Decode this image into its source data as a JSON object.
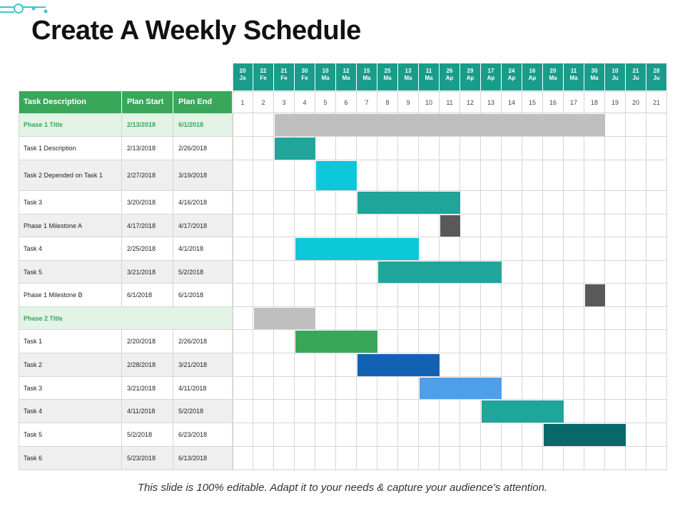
{
  "slide": {
    "title": "Create A Weekly Schedule",
    "footer": "This slide is 100% editable. Adapt it to your needs & capture your audience's attention.",
    "accent_color": "#1a9c8b",
    "header_green": "#3aa65a"
  },
  "chart_data": {
    "type": "table",
    "columns": [
      "Task Description",
      "Plan Start",
      "Plan End"
    ],
    "week_dates": [
      [
        "20",
        "Ja"
      ],
      [
        "22",
        "Fe"
      ],
      [
        "21",
        "Fe"
      ],
      [
        "30",
        "Fe"
      ],
      [
        "10",
        "Ma"
      ],
      [
        "12",
        "Ma"
      ],
      [
        "15",
        "Ma"
      ],
      [
        "25",
        "Ma"
      ],
      [
        "13",
        "Ma"
      ],
      [
        "11",
        "Ma"
      ],
      [
        "26",
        "Ap"
      ],
      [
        "29",
        "Ap"
      ],
      [
        "17",
        "Ap"
      ],
      [
        "24",
        "Ap"
      ],
      [
        "16",
        "Ap"
      ],
      [
        "20",
        "Ma"
      ],
      [
        "11",
        "Ma"
      ],
      [
        "30",
        "Ma"
      ],
      [
        "10",
        "Ju"
      ],
      [
        "21",
        "Ju"
      ],
      [
        "28",
        "Ju"
      ]
    ],
    "week_numbers": [
      "1",
      "2",
      "3",
      "4",
      "5",
      "6",
      "7",
      "8",
      "9",
      "10",
      "11",
      "12",
      "13",
      "14",
      "15",
      "16",
      "17",
      "18",
      "19",
      "20",
      "21"
    ],
    "rows": [
      {
        "task": "Phase 1 Title",
        "start": "2/13/2018",
        "end": "6/1/2018",
        "phase": true,
        "bar_start_week": 3,
        "bar_end_week": 18,
        "color": "#bfbfbf"
      },
      {
        "task": "Task 1 Description",
        "start": "2/13/2018",
        "end": "2/26/2018",
        "phase": false,
        "bar_start_week": 3,
        "bar_end_week": 4,
        "color": "#1fa59a"
      },
      {
        "task": "Task 2 Depended on Task 1",
        "start": "2/27/2018",
        "end": "3/19/2018",
        "phase": false,
        "bar_start_week": 5,
        "bar_end_week": 6,
        "color": "#0cc8d8"
      },
      {
        "task": "Task 3",
        "start": "3/20/2018",
        "end": "4/16/2018",
        "phase": false,
        "bar_start_week": 7,
        "bar_end_week": 11,
        "color": "#1fa59a"
      },
      {
        "task": "Phase 1 Milestone A",
        "start": "4/17/2018",
        "end": "4/17/2018",
        "phase": false,
        "bar_start_week": 11,
        "bar_end_week": 11,
        "color": "#595959"
      },
      {
        "task": "Task 4",
        "start": "2/25/2018",
        "end": "4/1/2018",
        "phase": false,
        "bar_start_week": 4,
        "bar_end_week": 9,
        "color": "#0cc8d8"
      },
      {
        "task": "Task 5",
        "start": "3/21/2018",
        "end": "5/2/2018",
        "phase": false,
        "bar_start_week": 8,
        "bar_end_week": 13,
        "color": "#1fa59a"
      },
      {
        "task": "Phase 1 Milestone B",
        "start": "6/1/2018",
        "end": "6/1/2018",
        "phase": false,
        "bar_start_week": 18,
        "bar_end_week": 18,
        "color": "#595959"
      },
      {
        "task": "Phase 2 Title",
        "start": "",
        "end": "",
        "phase": true,
        "bar_start_week": 2,
        "bar_end_week": 4,
        "color": "#bfbfbf"
      },
      {
        "task": "Task 1",
        "start": "2/20/2018",
        "end": "2/26/2018",
        "phase": false,
        "bar_start_week": 4,
        "bar_end_week": 7,
        "color": "#3aa65a"
      },
      {
        "task": "Task 2",
        "start": "2/28/2018",
        "end": "3/21/2018",
        "phase": false,
        "bar_start_week": 7,
        "bar_end_week": 10,
        "color": "#1261b3"
      },
      {
        "task": "Task 3",
        "start": "3/21/2018",
        "end": "4/11/2018",
        "phase": false,
        "bar_start_week": 10,
        "bar_end_week": 13,
        "color": "#4d9fea"
      },
      {
        "task": "Task 4",
        "start": "4/11/2018",
        "end": "5/2/2018",
        "phase": false,
        "bar_start_week": 13,
        "bar_end_week": 16,
        "color": "#1fa59a"
      },
      {
        "task": "Task 5",
        "start": "5/2/2018",
        "end": "6/23/2018",
        "phase": false,
        "bar_start_week": 16,
        "bar_end_week": 19,
        "color": "#08696b"
      },
      {
        "task": "Task 6",
        "start": "5/23/2018",
        "end": "6/13/2018",
        "phase": false,
        "bar_start_week": null,
        "bar_end_week": null,
        "color": ""
      }
    ]
  }
}
